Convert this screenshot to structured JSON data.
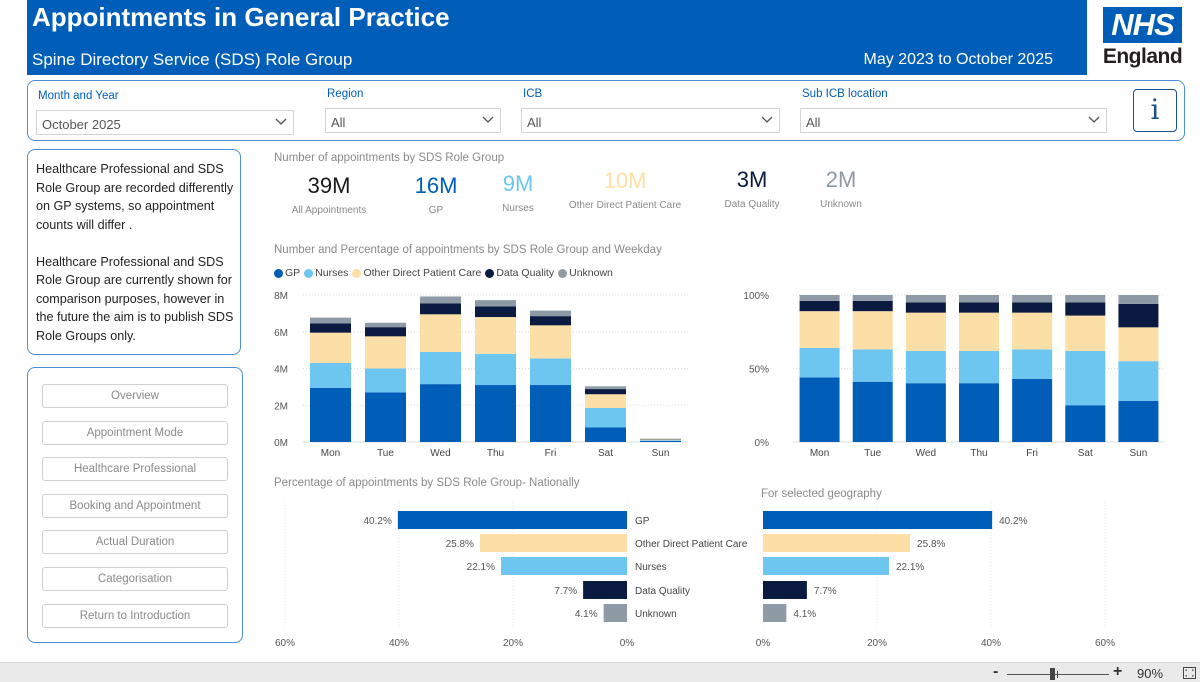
{
  "header": {
    "title": "Appointments in General Practice",
    "subtitle": "Spine Directory Service (SDS) Role Group",
    "date_range": "May 2023 to October 2025",
    "logo_top": "NHS",
    "logo_bottom": "England"
  },
  "filters": {
    "month": {
      "label": "Month and Year",
      "value": "October 2025"
    },
    "region": {
      "label": "Region",
      "value": "All"
    },
    "icb": {
      "label": "ICB",
      "value": "All"
    },
    "sub_icb": {
      "label": "Sub ICB location",
      "value": "All"
    },
    "info_glyph": "i"
  },
  "note": {
    "para1": "Healthcare Professional and SDS Role Group are recorded differently on GP systems, so appointment counts will differ .",
    "para2": "Healthcare Professional and SDS Role Group are currently shown for comparison purposes, however in the future the aim is to publish SDS Role Groups only."
  },
  "nav": {
    "items": [
      "Overview",
      "Appointment Mode",
      "Healthcare Professional",
      "Booking and Appointment",
      "Actual Duration",
      "Categorisation",
      "Return to Introduction"
    ]
  },
  "kpis": {
    "title": "Number of appointments by SDS Role Group",
    "items": [
      {
        "value": "39M",
        "label": "All Appointments",
        "color": "#1a1a1a"
      },
      {
        "value": "16M",
        "label": "GP",
        "color": "#005eb8"
      },
      {
        "value": "9M",
        "label": "Nurses",
        "color": "#6cc6ef"
      },
      {
        "value": "10M",
        "label": "Other Direct Patient Care",
        "color": "#fbdfa6"
      },
      {
        "value": "3M",
        "label": "Data Quality",
        "color": "#0a1a40"
      },
      {
        "value": "2M",
        "label": "Unknown",
        "color": "#8e9aa6"
      }
    ]
  },
  "weekday_section": {
    "title": "Number and Percentage of appointments by SDS Role Group and Weekday",
    "legend": [
      {
        "name": "GP",
        "color": "#005eb8"
      },
      {
        "name": "Nurses",
        "color": "#6cc6ef"
      },
      {
        "name": "Other Direct Patient Care",
        "color": "#fbdfa6"
      },
      {
        "name": "Data Quality",
        "color": "#0a1a40"
      },
      {
        "name": "Unknown",
        "color": "#8e9aa6"
      }
    ]
  },
  "national_section": {
    "title": "Percentage of appointments by SDS Role Group- Nationally",
    "geo_title": "For selected geography"
  },
  "footer": {
    "zoom_minus": "-",
    "zoom_plus": "+",
    "zoom_level": "90%"
  },
  "chart_data": [
    {
      "type": "bar",
      "stacked": true,
      "title": "Number of appointments by SDS Role Group and Weekday",
      "categories": [
        "Mon",
        "Tue",
        "Wed",
        "Thu",
        "Fri",
        "Sat",
        "Sun"
      ],
      "ylim": [
        0,
        8000000
      ],
      "yticks": [
        0,
        2000000,
        4000000,
        6000000,
        8000000
      ],
      "ytick_labels": [
        "0M",
        "2M",
        "4M",
        "6M",
        "8M"
      ],
      "series": [
        {
          "name": "GP",
          "color": "#005eb8",
          "values": [
            2950000,
            2700000,
            3150000,
            3100000,
            3100000,
            800000,
            60000
          ]
        },
        {
          "name": "Nurses",
          "color": "#6cc6ef",
          "values": [
            1350000,
            1300000,
            1750000,
            1700000,
            1450000,
            1050000,
            40000
          ]
        },
        {
          "name": "Other Direct Patient Care",
          "color": "#fbdfa6",
          "values": [
            1650000,
            1750000,
            2050000,
            2000000,
            1800000,
            750000,
            40000
          ]
        },
        {
          "name": "Data Quality",
          "color": "#0a1a40",
          "values": [
            500000,
            500000,
            600000,
            580000,
            500000,
            280000,
            20000
          ]
        },
        {
          "name": "Unknown",
          "color": "#8e9aa6",
          "values": [
            320000,
            240000,
            370000,
            340000,
            300000,
            150000,
            20000
          ]
        }
      ]
    },
    {
      "type": "bar",
      "stacked": true,
      "title": "Percentage of appointments by SDS Role Group and Weekday",
      "categories": [
        "Mon",
        "Tue",
        "Wed",
        "Thu",
        "Fri",
        "Sat",
        "Sun"
      ],
      "ylim": [
        0,
        100
      ],
      "yticks": [
        0,
        50,
        100
      ],
      "ytick_labels": [
        "0%",
        "50%",
        "100%"
      ],
      "series": [
        {
          "name": "GP",
          "color": "#005eb8",
          "values": [
            44,
            41,
            40,
            40,
            43,
            25,
            28
          ]
        },
        {
          "name": "Nurses",
          "color": "#6cc6ef",
          "values": [
            20,
            22,
            22,
            22,
            20,
            37,
            27
          ]
        },
        {
          "name": "Other Direct Patient Care",
          "color": "#fbdfa6",
          "values": [
            25,
            26,
            26,
            26,
            25,
            24,
            23
          ]
        },
        {
          "name": "Data Quality",
          "color": "#0a1a40",
          "values": [
            7,
            7,
            7,
            7,
            7,
            9,
            16
          ]
        },
        {
          "name": "Unknown",
          "color": "#8e9aa6",
          "values": [
            4,
            4,
            5,
            5,
            5,
            5,
            6
          ]
        }
      ]
    },
    {
      "type": "bar",
      "orientation": "horizontal",
      "title": "Percentage of appointments by SDS Role Group- Nationally",
      "categories": [
        "GP",
        "Other Direct Patient Care",
        "Nurses",
        "Data Quality",
        "Unknown"
      ],
      "values": [
        40.2,
        25.8,
        22.1,
        7.7,
        4.1
      ],
      "value_labels": [
        "40.2%",
        "25.8%",
        "22.1%",
        "7.7%",
        "4.1%"
      ],
      "colors": [
        "#005eb8",
        "#fbdfa6",
        "#6cc6ef",
        "#0a1a40",
        "#8e9aa6"
      ],
      "xlim": [
        0,
        60
      ],
      "xticks": [
        60,
        40,
        20,
        0
      ],
      "xtick_labels": [
        "60%",
        "40%",
        "20%",
        "0%"
      ]
    },
    {
      "type": "bar",
      "orientation": "horizontal",
      "title": "For selected geography",
      "categories": [
        "GP",
        "Other Direct Patient Care",
        "Nurses",
        "Data Quality",
        "Unknown"
      ],
      "values": [
        40.2,
        25.8,
        22.1,
        7.7,
        4.1
      ],
      "value_labels": [
        "40.2%",
        "25.8%",
        "22.1%",
        "7.7%",
        "4.1%"
      ],
      "colors": [
        "#005eb8",
        "#fbdfa6",
        "#6cc6ef",
        "#0a1a40",
        "#8e9aa6"
      ],
      "xlim": [
        0,
        60
      ],
      "xticks": [
        0,
        20,
        40,
        60
      ],
      "xtick_labels": [
        "0%",
        "20%",
        "40%",
        "60%"
      ]
    }
  ]
}
